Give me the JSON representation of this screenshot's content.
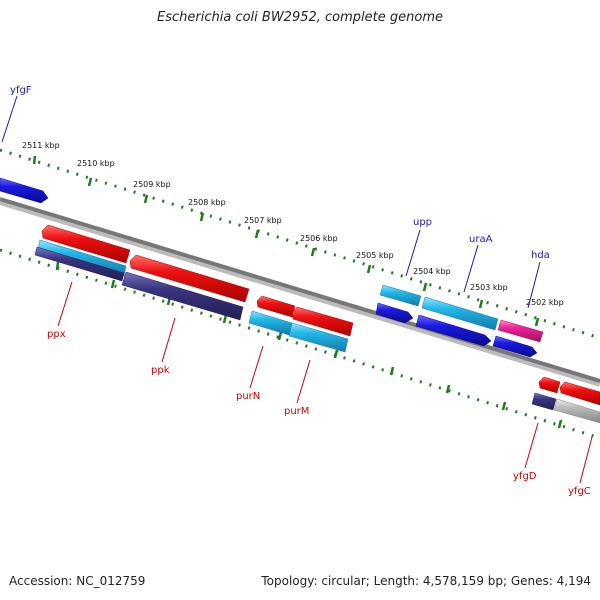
{
  "header": {
    "title": "Escherichia coli BW2952, complete genome"
  },
  "footer": {
    "accession": "Accession: NC_012759",
    "stats": "Topology: circular; Length: 4,578,159 bp; Genes: 4,194"
  },
  "ruler": {
    "ticks": [
      "2511 kbp",
      "2510 kbp",
      "2509 kbp",
      "2508 kbp",
      "2507 kbp",
      "2506 kbp",
      "2505 kbp",
      "2504 kbp",
      "2503 kbp",
      "2502 kbp"
    ]
  },
  "genes": {
    "top": [
      "yfgF",
      "upp",
      "uraA",
      "hda"
    ],
    "bottom": [
      "ppx",
      "ppk",
      "purN",
      "purM",
      "yfgD",
      "yfgC"
    ]
  },
  "colors": {
    "forward_label": "#1a1ab8",
    "reverse_label": "#cc0000",
    "red_feature": "#ee1111",
    "cyan_feature": "#22b8e8",
    "blue_feature": "#1a1ae0",
    "navy_feature": "#3a3580",
    "pink_feature": "#ee2299",
    "gray_feature": "#bbbbbb",
    "backbone": "#777777",
    "ruler_dots": "#1f7a1f"
  }
}
